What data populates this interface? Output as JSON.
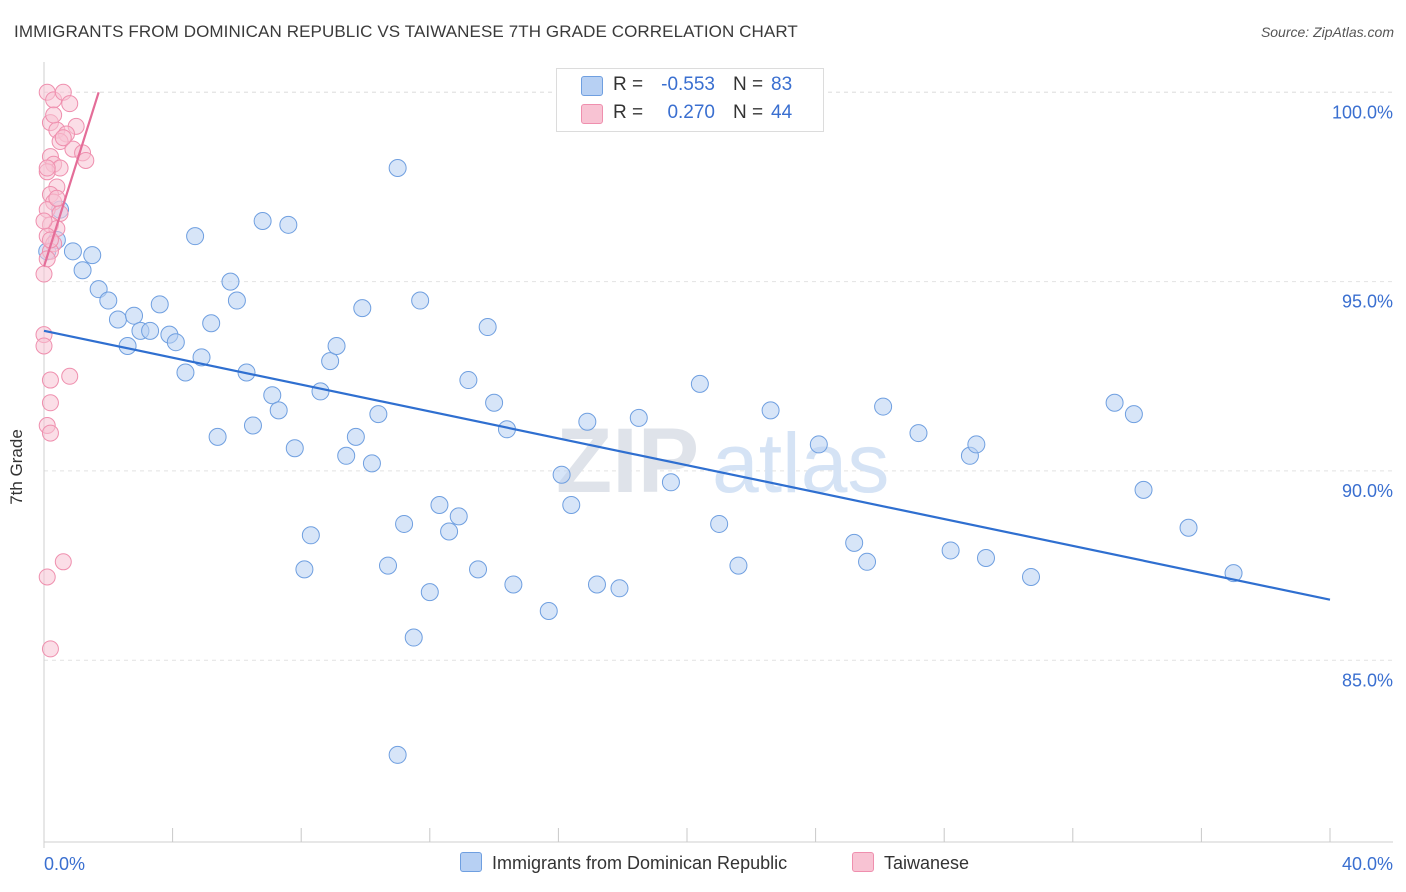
{
  "title": "IMMIGRANTS FROM DOMINICAN REPUBLIC VS TAIWANESE 7TH GRADE CORRELATION CHART",
  "source": "Source: ZipAtlas.com",
  "watermark": {
    "zip": "ZIP",
    "atlas": "atlas"
  },
  "colors": {
    "blue_fill": "#b7d0f3",
    "blue_stroke": "#6f9fe0",
    "blue_line": "#2f6fd0",
    "pink_fill": "#f8c3d3",
    "pink_stroke": "#ef8fae",
    "pink_line": "#e46d98",
    "axis_text": "#3a6fd0",
    "grid": "#e2e2e2"
  },
  "legend": {
    "blue": {
      "r_label": "R =",
      "r_value": "-0.553",
      "n_label": "N =",
      "n_value": "83"
    },
    "pink": {
      "r_label": "R =",
      "r_value": "0.270",
      "n_label": "N =",
      "n_value": "44"
    }
  },
  "bottom_legend": {
    "blue_label": "Immigrants from Dominican Republic",
    "pink_label": "Taiwanese"
  },
  "chart_data": {
    "type": "scatter",
    "title": "IMMIGRANTS FROM DOMINICAN REPUBLIC VS TAIWANESE 7TH GRADE CORRELATION CHART",
    "xlabel": "",
    "ylabel": "7th Grade",
    "xlim": [
      0,
      40
    ],
    "ylim": [
      80.2,
      100.8
    ],
    "x_tick_labels": {
      "left": "0.0%",
      "right": "40.0%"
    },
    "y_ticks": [
      {
        "value": 100,
        "label": "100.0%"
      },
      {
        "value": 95,
        "label": "95.0%"
      },
      {
        "value": 90,
        "label": "90.0%"
      },
      {
        "value": 85,
        "label": "85.0%"
      }
    ],
    "x_minor_ticks": [
      0,
      4,
      8,
      12,
      16,
      20,
      24,
      28,
      32,
      36,
      40
    ],
    "series": [
      {
        "name": "Immigrants from Dominican Republic",
        "color": "blue",
        "trend": {
          "x0": 0,
          "y0": 93.7,
          "x1": 40,
          "y1": 86.6
        },
        "points": [
          [
            0.1,
            95.8
          ],
          [
            0.4,
            96.1
          ],
          [
            0.9,
            95.8
          ],
          [
            1.5,
            95.7
          ],
          [
            1.2,
            95.3
          ],
          [
            1.7,
            94.8
          ],
          [
            2.0,
            94.5
          ],
          [
            2.3,
            94.0
          ],
          [
            2.6,
            93.3
          ],
          [
            2.8,
            94.1
          ],
          [
            3.0,
            93.7
          ],
          [
            3.3,
            93.7
          ],
          [
            3.6,
            94.4
          ],
          [
            3.9,
            93.6
          ],
          [
            4.1,
            93.4
          ],
          [
            4.4,
            92.6
          ],
          [
            4.7,
            96.2
          ],
          [
            4.9,
            93.0
          ],
          [
            5.2,
            93.9
          ],
          [
            5.4,
            90.9
          ],
          [
            5.8,
            95.0
          ],
          [
            6.0,
            94.5
          ],
          [
            6.3,
            92.6
          ],
          [
            6.5,
            91.2
          ],
          [
            6.8,
            96.6
          ],
          [
            7.1,
            92.0
          ],
          [
            7.3,
            91.6
          ],
          [
            7.6,
            96.5
          ],
          [
            7.8,
            90.6
          ],
          [
            8.1,
            87.4
          ],
          [
            8.3,
            88.3
          ],
          [
            8.6,
            92.1
          ],
          [
            8.9,
            92.9
          ],
          [
            9.1,
            93.3
          ],
          [
            9.4,
            90.4
          ],
          [
            9.7,
            90.9
          ],
          [
            9.9,
            94.3
          ],
          [
            10.2,
            90.2
          ],
          [
            10.4,
            91.5
          ],
          [
            10.7,
            87.5
          ],
          [
            11.0,
            98.0
          ],
          [
            11.2,
            88.6
          ],
          [
            11.0,
            82.5
          ],
          [
            11.5,
            85.6
          ],
          [
            11.7,
            94.5
          ],
          [
            12.0,
            86.8
          ],
          [
            12.3,
            89.1
          ],
          [
            12.6,
            88.4
          ],
          [
            12.9,
            88.8
          ],
          [
            13.2,
            92.4
          ],
          [
            13.5,
            87.4
          ],
          [
            13.8,
            93.8
          ],
          [
            14.0,
            91.8
          ],
          [
            14.4,
            91.1
          ],
          [
            14.6,
            87.0
          ],
          [
            15.7,
            86.3
          ],
          [
            16.1,
            89.9
          ],
          [
            16.4,
            89.1
          ],
          [
            16.9,
            91.3
          ],
          [
            17.2,
            87.0
          ],
          [
            17.9,
            86.9
          ],
          [
            18.5,
            91.4
          ],
          [
            19.5,
            89.7
          ],
          [
            20.4,
            92.3
          ],
          [
            21.0,
            88.6
          ],
          [
            21.6,
            87.5
          ],
          [
            22.6,
            91.6
          ],
          [
            24.1,
            90.7
          ],
          [
            25.2,
            88.1
          ],
          [
            25.6,
            87.6
          ],
          [
            26.1,
            91.7
          ],
          [
            27.2,
            91.0
          ],
          [
            28.2,
            87.9
          ],
          [
            28.8,
            90.4
          ],
          [
            29.0,
            90.7
          ],
          [
            29.3,
            87.7
          ],
          [
            30.7,
            87.2
          ],
          [
            33.3,
            91.8
          ],
          [
            33.9,
            91.5
          ],
          [
            34.2,
            89.5
          ],
          [
            35.6,
            88.5
          ],
          [
            37.0,
            87.3
          ],
          [
            0.5,
            96.9
          ]
        ]
      },
      {
        "name": "Taiwanese",
        "color": "pink",
        "trend": {
          "x0": 0,
          "y0": 95.4,
          "x1": 1.7,
          "y1": 100.0
        },
        "points": [
          [
            0.1,
            100.0
          ],
          [
            0.3,
            99.8
          ],
          [
            0.6,
            100.0
          ],
          [
            0.8,
            99.7
          ],
          [
            0.2,
            99.2
          ],
          [
            0.4,
            99.0
          ],
          [
            1.0,
            99.1
          ],
          [
            0.7,
            98.9
          ],
          [
            0.5,
            98.7
          ],
          [
            0.9,
            98.5
          ],
          [
            1.2,
            98.4
          ],
          [
            1.3,
            98.2
          ],
          [
            0.2,
            98.3
          ],
          [
            0.3,
            98.1
          ],
          [
            0.5,
            98.0
          ],
          [
            0.1,
            97.9
          ],
          [
            0.4,
            97.5
          ],
          [
            0.2,
            97.3
          ],
          [
            0.3,
            97.1
          ],
          [
            0.1,
            96.9
          ],
          [
            0.5,
            96.8
          ],
          [
            0.2,
            96.5
          ],
          [
            0.4,
            96.4
          ],
          [
            0.1,
            96.2
          ],
          [
            0.3,
            96.0
          ],
          [
            0.2,
            95.8
          ],
          [
            0.1,
            95.6
          ],
          [
            0.0,
            95.2
          ],
          [
            0.0,
            93.6
          ],
          [
            0.0,
            93.3
          ],
          [
            0.2,
            92.4
          ],
          [
            0.8,
            92.5
          ],
          [
            0.2,
            91.8
          ],
          [
            0.1,
            91.2
          ],
          [
            0.2,
            91.0
          ],
          [
            0.6,
            87.6
          ],
          [
            0.1,
            87.2
          ],
          [
            0.2,
            85.3
          ],
          [
            0.0,
            96.6
          ],
          [
            0.3,
            99.4
          ],
          [
            0.6,
            98.8
          ],
          [
            0.1,
            98.0
          ],
          [
            0.4,
            97.2
          ],
          [
            0.2,
            96.1
          ]
        ]
      }
    ]
  }
}
